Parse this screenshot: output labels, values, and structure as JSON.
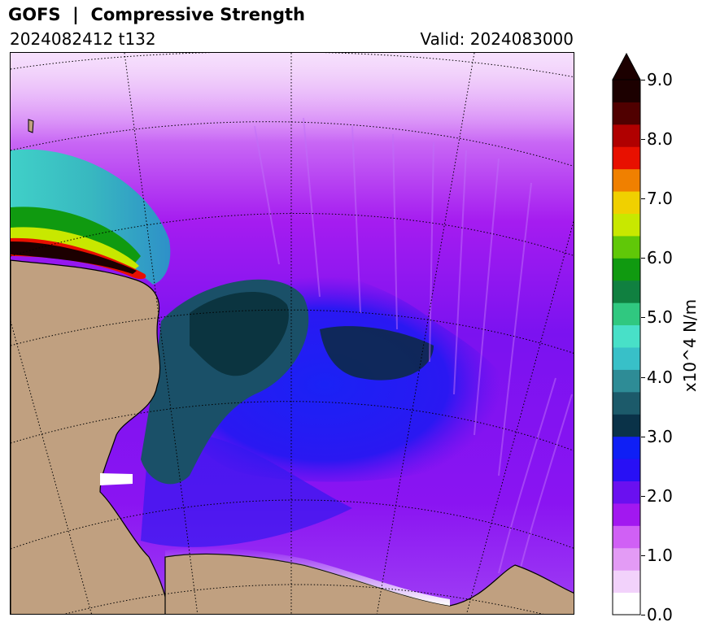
{
  "header": {
    "title": "GOFS  |  Compressive Strength",
    "run_info": "2024082412 t132",
    "valid_info": "Valid: 2024083000"
  },
  "colorbar": {
    "unit_label": "x10^4 N/m",
    "ticks": [
      "0.0",
      "1.0",
      "2.0",
      "3.0",
      "4.0",
      "5.0",
      "6.0",
      "7.0",
      "8.0",
      "9.0"
    ],
    "min": 0,
    "max": 9,
    "extend": "max",
    "colors": [
      "#ffffff",
      "#f2d2fb",
      "#e39bf5",
      "#d060f5",
      "#a218f0",
      "#6a10f0",
      "#2810f5",
      "#0f1ff5",
      "#0a3248",
      "#1c5a6a",
      "#2e8c96",
      "#38c0c8",
      "#48e0c8",
      "#30c880",
      "#108040",
      "#109a10",
      "#60c808",
      "#c8e800",
      "#f0d000",
      "#f08000",
      "#e81000",
      "#b00000",
      "#500000",
      "#1c0000"
    ]
  },
  "map": {
    "land_color": "#c0a080",
    "graticule": "dotted black lines",
    "projection": "polar stereographic"
  }
}
